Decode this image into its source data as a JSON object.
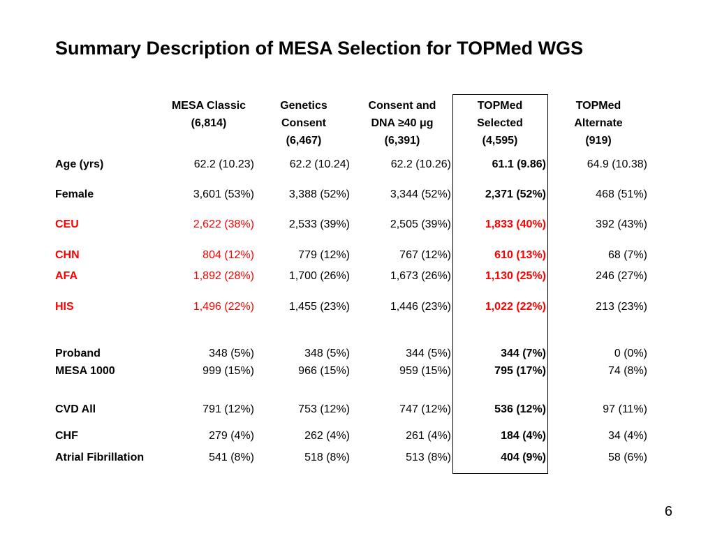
{
  "title": "Summary Description of MESA Selection for TOPMed WGS",
  "headers": [
    "MESA Classic\n(6,814)",
    "Genetics\nConsent\n(6,467)",
    "Consent and\nDNA ≥40 μg\n(6,391)",
    "TOPMed\nSelected\n(4,595)",
    "TOPMed\nAlternate\n(919)"
  ],
  "rows": [
    {
      "label": "Age (yrs)",
      "values": [
        "62.2 (10.23)",
        "62.2 (10.24)",
        "62.2 (10.26)",
        "61.1 (9.86)",
        "64.9 (10.38)"
      ]
    },
    {
      "label": "Female",
      "values": [
        "3,601 (53%)",
        "3,388 (52%)",
        "3,344 (52%)",
        "2,371 (52%)",
        "468 (51%)"
      ]
    },
    {
      "label": "CEU",
      "values": [
        "2,622 (38%)",
        "2,533 (39%)",
        "2,505 (39%)",
        "1,833 (40%)",
        "392 (43%)"
      ]
    },
    {
      "label": "CHN",
      "values": [
        "804 (12%)",
        "779 (12%)",
        "767 (12%)",
        "610 (13%)",
        "68 (7%)"
      ]
    },
    {
      "label": "AFA",
      "values": [
        "1,892 (28%)",
        "1,700 (26%)",
        "1,673 (26%)",
        "1,130 (25%)",
        "246 (27%)"
      ]
    },
    {
      "label": "HIS",
      "values": [
        "1,496 (22%)",
        "1,455 (23%)",
        "1,446 (23%)",
        "1,022 (22%)",
        "213 (23%)"
      ]
    },
    {
      "label": "Proband",
      "values": [
        "348 (5%)",
        "348 (5%)",
        "344 (5%)",
        "344 (7%)",
        "0 (0%)"
      ]
    },
    {
      "label": "MESA 1000",
      "values": [
        "999 (15%)",
        "966 (15%)",
        "959 (15%)",
        "795 (17%)",
        "74 (8%)"
      ]
    },
    {
      "label": "CVD All",
      "values": [
        "791 (12%)",
        "753 (12%)",
        "747 (12%)",
        "536 (12%)",
        "97 (11%)"
      ]
    },
    {
      "label": "CHF",
      "values": [
        "279 (4%)",
        "262 (4%)",
        "261 (4%)",
        "184 (4%)",
        "34 (4%)"
      ]
    },
    {
      "label": "Atrial Fibrillation",
      "values": [
        "541 (8%)",
        "518 (8%)",
        "513 (8%)",
        "404 (9%)",
        "58 (6%)"
      ]
    }
  ],
  "colors": {
    "text": "#000000",
    "highlight": "#ff0000"
  },
  "page_number": "6"
}
